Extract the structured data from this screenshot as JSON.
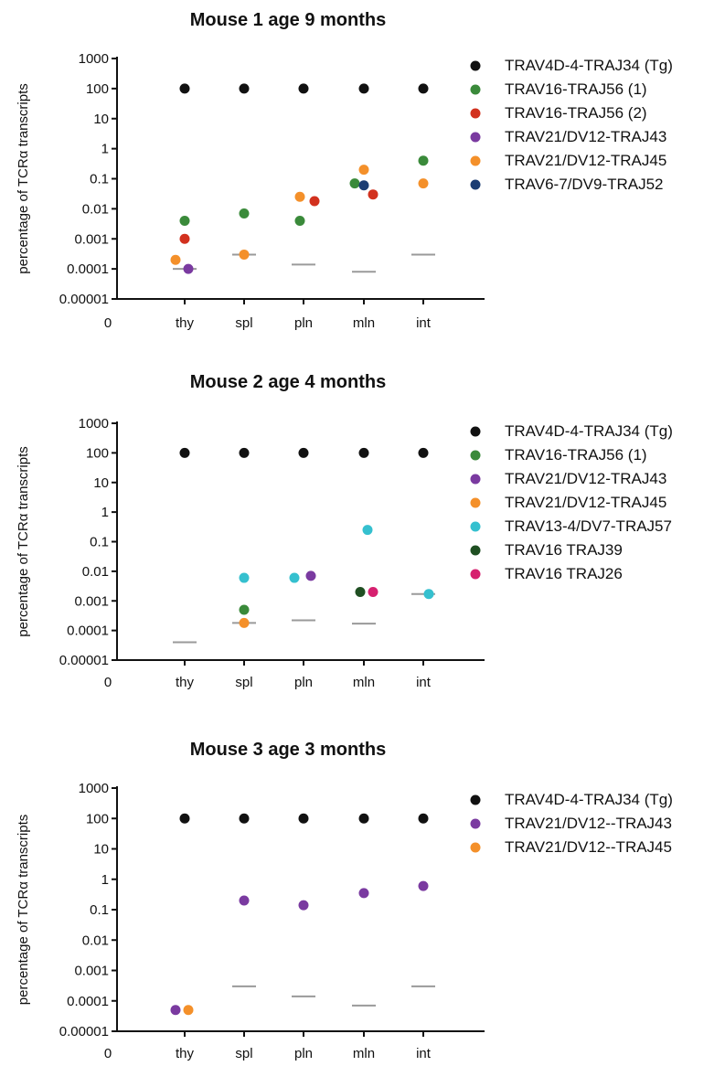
{
  "colors": {
    "black": "#111111",
    "green": "#3a8a3a",
    "red": "#d2311e",
    "purple": "#7a3aa0",
    "orange": "#f4902a",
    "navy": "#1c3d73",
    "cyan": "#35c0cf",
    "darkgreen": "#1f4f22",
    "magenta": "#d6206f",
    "baseline": "#9a9a9a"
  },
  "chart_data": [
    {
      "type": "scatter",
      "title": "Mouse 1 age 9 months",
      "ylabel": "percentage of TCRα transcripts",
      "yscale": "log",
      "ylim": [
        1e-05,
        1000
      ],
      "yticks": [
        "1000",
        "100",
        "10",
        "1",
        "0.1",
        "0.01",
        "0.001",
        "0.0001",
        "0.00001"
      ],
      "x_origin_label": "0",
      "categories": [
        "thy",
        "spl",
        "pln",
        "mln",
        "int"
      ],
      "legend_position": "right",
      "series": [
        {
          "name": "TRAV4D-4-TRAJ34 (Tg)",
          "color": "black",
          "points": [
            [
              "thy",
              100
            ],
            [
              "spl",
              100
            ],
            [
              "pln",
              100
            ],
            [
              "mln",
              100
            ],
            [
              "int",
              100
            ]
          ]
        },
        {
          "name": "TRAV16-TRAJ56 (1)",
          "color": "green",
          "points": [
            [
              "thy",
              0.004
            ],
            [
              "spl",
              0.007
            ],
            [
              "pln",
              0.004
            ],
            [
              "mln",
              0.07
            ],
            [
              "int",
              0.4
            ]
          ]
        },
        {
          "name": "TRAV16-TRAJ56 (2)",
          "color": "red",
          "points": [
            [
              "thy",
              0.001
            ],
            [
              "pln",
              0.018
            ],
            [
              "mln",
              0.03
            ]
          ]
        },
        {
          "name": "TRAV21/DV12-TRAJ43",
          "color": "purple",
          "points": [
            [
              "thy",
              0.0001
            ]
          ]
        },
        {
          "name": "TRAV21/DV12-TRAJ45",
          "color": "orange",
          "points": [
            [
              "thy",
              0.0002
            ],
            [
              "spl",
              0.0003
            ],
            [
              "pln",
              0.025
            ],
            [
              "mln",
              0.2
            ],
            [
              "int",
              0.07
            ]
          ]
        },
        {
          "name": "TRAV6-7/DV9-TRAJ52",
          "color": "navy",
          "points": [
            [
              "mln",
              0.06
            ]
          ]
        }
      ],
      "detection_limits": [
        [
          "thy",
          0.0001
        ],
        [
          "spl",
          0.0003
        ],
        [
          "pln",
          0.00014
        ],
        [
          "mln",
          8e-05
        ],
        [
          "int",
          0.0003
        ]
      ]
    },
    {
      "type": "scatter",
      "title": "Mouse 2 age 4 months",
      "ylabel": "percentage of TCRα transcripts",
      "yscale": "log",
      "ylim": [
        1e-05,
        1000
      ],
      "yticks": [
        "1000",
        "100",
        "10",
        "1",
        "0.1",
        "0.01",
        "0.001",
        "0.0001",
        "0.00001"
      ],
      "x_origin_label": "0",
      "categories": [
        "thy",
        "spl",
        "pln",
        "mln",
        "int"
      ],
      "legend_position": "right",
      "series": [
        {
          "name": "TRAV4D-4-TRAJ34 (Tg)",
          "color": "black",
          "points": [
            [
              "thy",
              100
            ],
            [
              "spl",
              100
            ],
            [
              "pln",
              100
            ],
            [
              "mln",
              100
            ],
            [
              "int",
              100
            ]
          ]
        },
        {
          "name": "TRAV16-TRAJ56 (1)",
          "color": "green",
          "points": [
            [
              "spl",
              0.0005
            ]
          ]
        },
        {
          "name": "TRAV21/DV12-TRAJ43",
          "color": "purple",
          "points": [
            [
              "pln",
              0.007
            ]
          ]
        },
        {
          "name": "TRAV21/DV12-TRAJ45",
          "color": "orange",
          "points": [
            [
              "spl",
              0.00018
            ]
          ]
        },
        {
          "name": "TRAV13-4/DV7-TRAJ57",
          "color": "cyan",
          "points": [
            [
              "spl",
              0.006
            ],
            [
              "pln",
              0.006
            ],
            [
              "mln",
              0.25
            ],
            [
              "int",
              0.0017
            ]
          ]
        },
        {
          "name": "TRAV16 TRAJ39",
          "color": "darkgreen",
          "points": [
            [
              "mln",
              0.002
            ]
          ]
        },
        {
          "name": "TRAV16 TRAJ26",
          "color": "magenta",
          "points": [
            [
              "mln",
              0.002
            ]
          ]
        }
      ],
      "detection_limits": [
        [
          "thy",
          4e-05
        ],
        [
          "spl",
          0.00018
        ],
        [
          "pln",
          0.00022
        ],
        [
          "mln",
          0.00017
        ],
        [
          "int",
          0.0017
        ]
      ]
    },
    {
      "type": "scatter",
      "title": "Mouse 3 age 3 months",
      "ylabel": "percentage of TCRα transcripts",
      "yscale": "log",
      "ylim": [
        1e-05,
        1000
      ],
      "yticks": [
        "1000",
        "100",
        "10",
        "1",
        "0.1",
        "0.01",
        "0.001",
        "0.0001",
        "0.00001"
      ],
      "x_origin_label": "0",
      "categories": [
        "thy",
        "spl",
        "pln",
        "mln",
        "int"
      ],
      "legend_position": "right",
      "series": [
        {
          "name": "TRAV4D-4-TRAJ34 (Tg)",
          "color": "black",
          "points": [
            [
              "thy",
              100
            ],
            [
              "spl",
              100
            ],
            [
              "pln",
              100
            ],
            [
              "mln",
              100
            ],
            [
              "int",
              100
            ]
          ]
        },
        {
          "name": "TRAV21/DV12--TRAJ43",
          "color": "purple",
          "points": [
            [
              "thy",
              5e-05
            ],
            [
              "spl",
              0.2
            ],
            [
              "pln",
              0.14
            ],
            [
              "mln",
              0.35
            ],
            [
              "int",
              0.6
            ]
          ]
        },
        {
          "name": "TRAV21/DV12--TRAJ45",
          "color": "orange",
          "points": [
            [
              "thy",
              5e-05
            ]
          ]
        }
      ],
      "detection_limits": [
        [
          "spl",
          0.0003
        ],
        [
          "pln",
          0.00014
        ],
        [
          "mln",
          7e-05
        ],
        [
          "int",
          0.0003
        ]
      ]
    }
  ]
}
